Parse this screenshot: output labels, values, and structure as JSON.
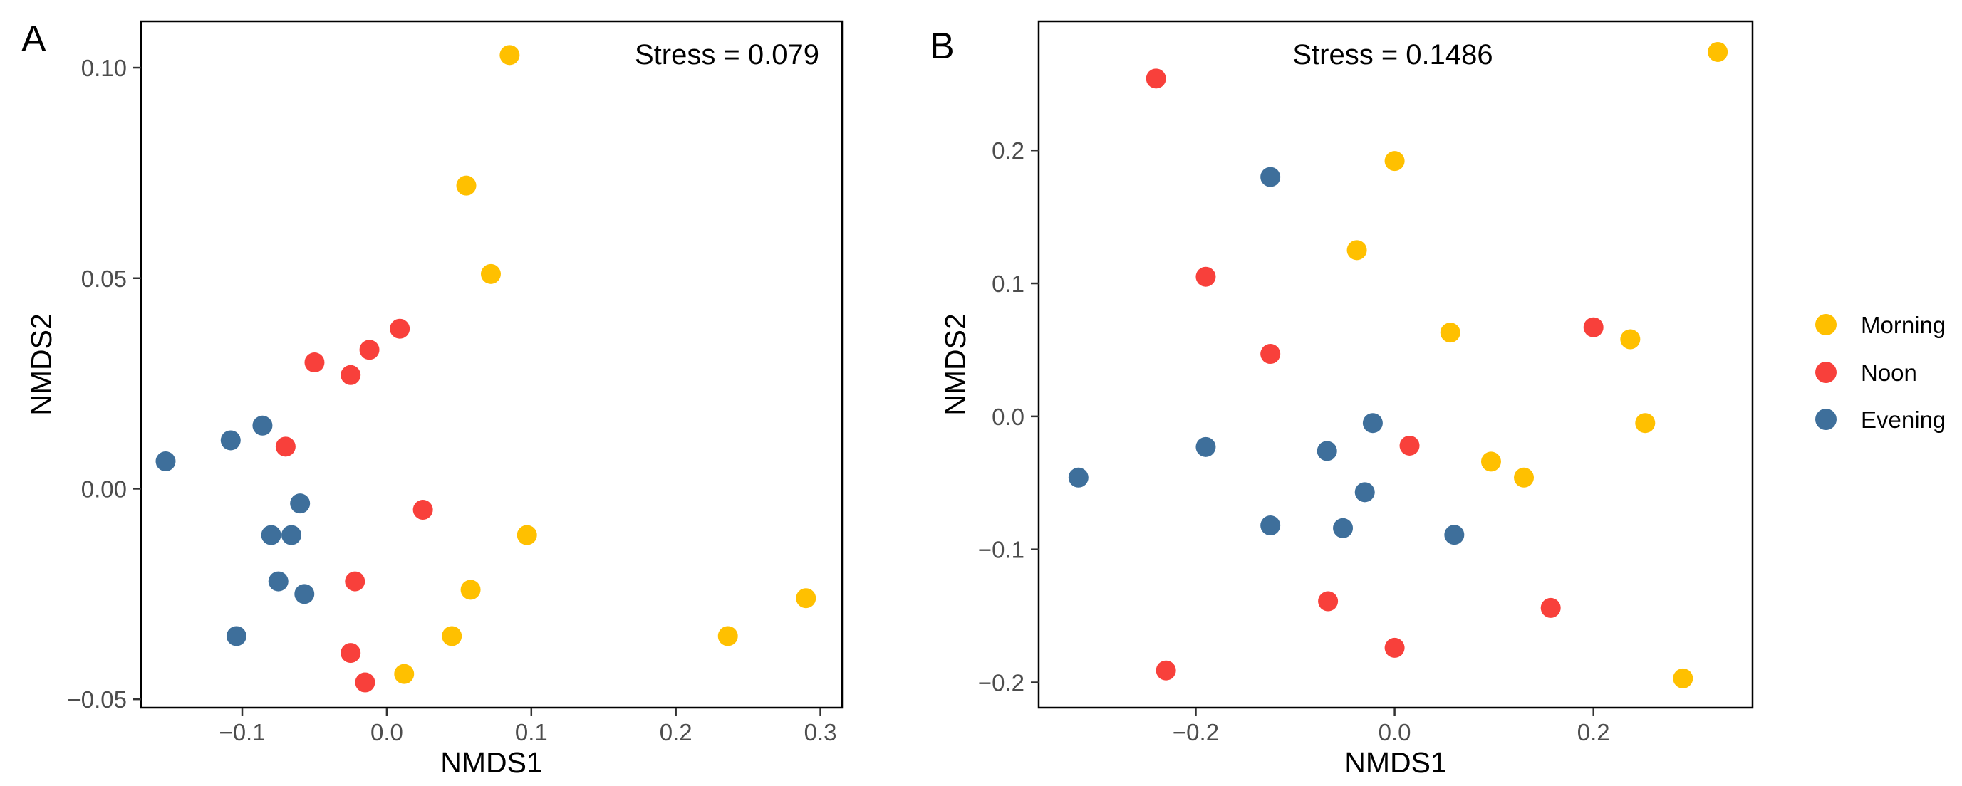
{
  "colors": {
    "Morning": "#FFC000",
    "Noon": "#F8403B",
    "Evening": "#3E6F9B",
    "axis_text": "#4d4d4d",
    "frame": "#000000"
  },
  "legend": {
    "entries": [
      {
        "label": "Morning"
      },
      {
        "label": "Noon"
      },
      {
        "label": "Evening"
      }
    ]
  },
  "chart_data": [
    {
      "panel": "A",
      "type": "scatter",
      "annotation": "Stress = 0.079",
      "xlabel": "NMDS1",
      "ylabel": "NMDS2",
      "xlim": [
        -0.17,
        0.315
      ],
      "ylim": [
        -0.052,
        0.111
      ],
      "xticks": [
        -0.1,
        0.0,
        0.1,
        0.2,
        0.3
      ],
      "xtick_labels": [
        "−0.1",
        "0.0",
        "0.1",
        "0.2",
        "0.3"
      ],
      "yticks": [
        -0.05,
        0.0,
        0.05,
        0.1
      ],
      "ytick_labels": [
        "−0.05",
        "0.00",
        "0.05",
        "0.10"
      ],
      "grid": false,
      "series": [
        {
          "name": "Morning",
          "points": [
            [
              0.085,
              0.103
            ],
            [
              0.055,
              0.072
            ],
            [
              0.072,
              0.051
            ],
            [
              0.097,
              -0.011
            ],
            [
              0.058,
              -0.024
            ],
            [
              0.045,
              -0.035
            ],
            [
              0.012,
              -0.044
            ],
            [
              0.236,
              -0.035
            ],
            [
              0.29,
              -0.026
            ]
          ]
        },
        {
          "name": "Noon",
          "points": [
            [
              0.009,
              0.038
            ],
            [
              -0.012,
              0.033
            ],
            [
              -0.05,
              0.03
            ],
            [
              -0.025,
              0.027
            ],
            [
              -0.07,
              0.01
            ],
            [
              0.025,
              -0.005
            ],
            [
              -0.022,
              -0.022
            ],
            [
              -0.025,
              -0.039
            ],
            [
              -0.015,
              -0.046
            ]
          ]
        },
        {
          "name": "Evening",
          "points": [
            [
              -0.153,
              0.0065
            ],
            [
              -0.108,
              0.0115
            ],
            [
              -0.086,
              0.015
            ],
            [
              -0.06,
              -0.0035
            ],
            [
              -0.08,
              -0.011
            ],
            [
              -0.066,
              -0.011
            ],
            [
              -0.075,
              -0.022
            ],
            [
              -0.057,
              -0.025
            ],
            [
              -0.104,
              -0.035
            ]
          ]
        }
      ]
    },
    {
      "panel": "B",
      "type": "scatter",
      "annotation": "Stress = 0.1486",
      "xlabel": "NMDS1",
      "ylabel": "NMDS2",
      "xlim": [
        -0.358,
        0.36
      ],
      "ylim": [
        -0.219,
        0.297
      ],
      "xticks": [
        -0.2,
        0.0,
        0.2
      ],
      "xtick_labels": [
        "−0.2",
        "0.0",
        "0.2"
      ],
      "yticks": [
        -0.2,
        -0.1,
        0.0,
        0.1,
        0.2
      ],
      "ytick_labels": [
        "−0.2",
        "−0.1",
        "0.0",
        "0.1",
        "0.2"
      ],
      "grid": false,
      "series": [
        {
          "name": "Morning",
          "points": [
            [
              0.325,
              0.274
            ],
            [
              0.0,
              0.192
            ],
            [
              -0.038,
              0.125
            ],
            [
              0.056,
              0.063
            ],
            [
              0.237,
              0.058
            ],
            [
              0.252,
              -0.005
            ],
            [
              0.097,
              -0.034
            ],
            [
              0.13,
              -0.046
            ],
            [
              0.29,
              -0.197
            ]
          ]
        },
        {
          "name": "Noon",
          "points": [
            [
              -0.24,
              0.254
            ],
            [
              -0.19,
              0.105
            ],
            [
              -0.125,
              0.047
            ],
            [
              0.2,
              0.067
            ],
            [
              0.015,
              -0.022
            ],
            [
              -0.067,
              -0.139
            ],
            [
              0.157,
              -0.144
            ],
            [
              0.0,
              -0.174
            ],
            [
              -0.23,
              -0.191
            ]
          ]
        },
        {
          "name": "Evening",
          "points": [
            [
              -0.125,
              0.18
            ],
            [
              -0.19,
              -0.023
            ],
            [
              -0.068,
              -0.026
            ],
            [
              -0.022,
              -0.005
            ],
            [
              -0.03,
              -0.057
            ],
            [
              -0.125,
              -0.082
            ],
            [
              -0.052,
              -0.084
            ],
            [
              0.06,
              -0.089
            ],
            [
              -0.318,
              -0.046
            ]
          ]
        }
      ]
    }
  ]
}
